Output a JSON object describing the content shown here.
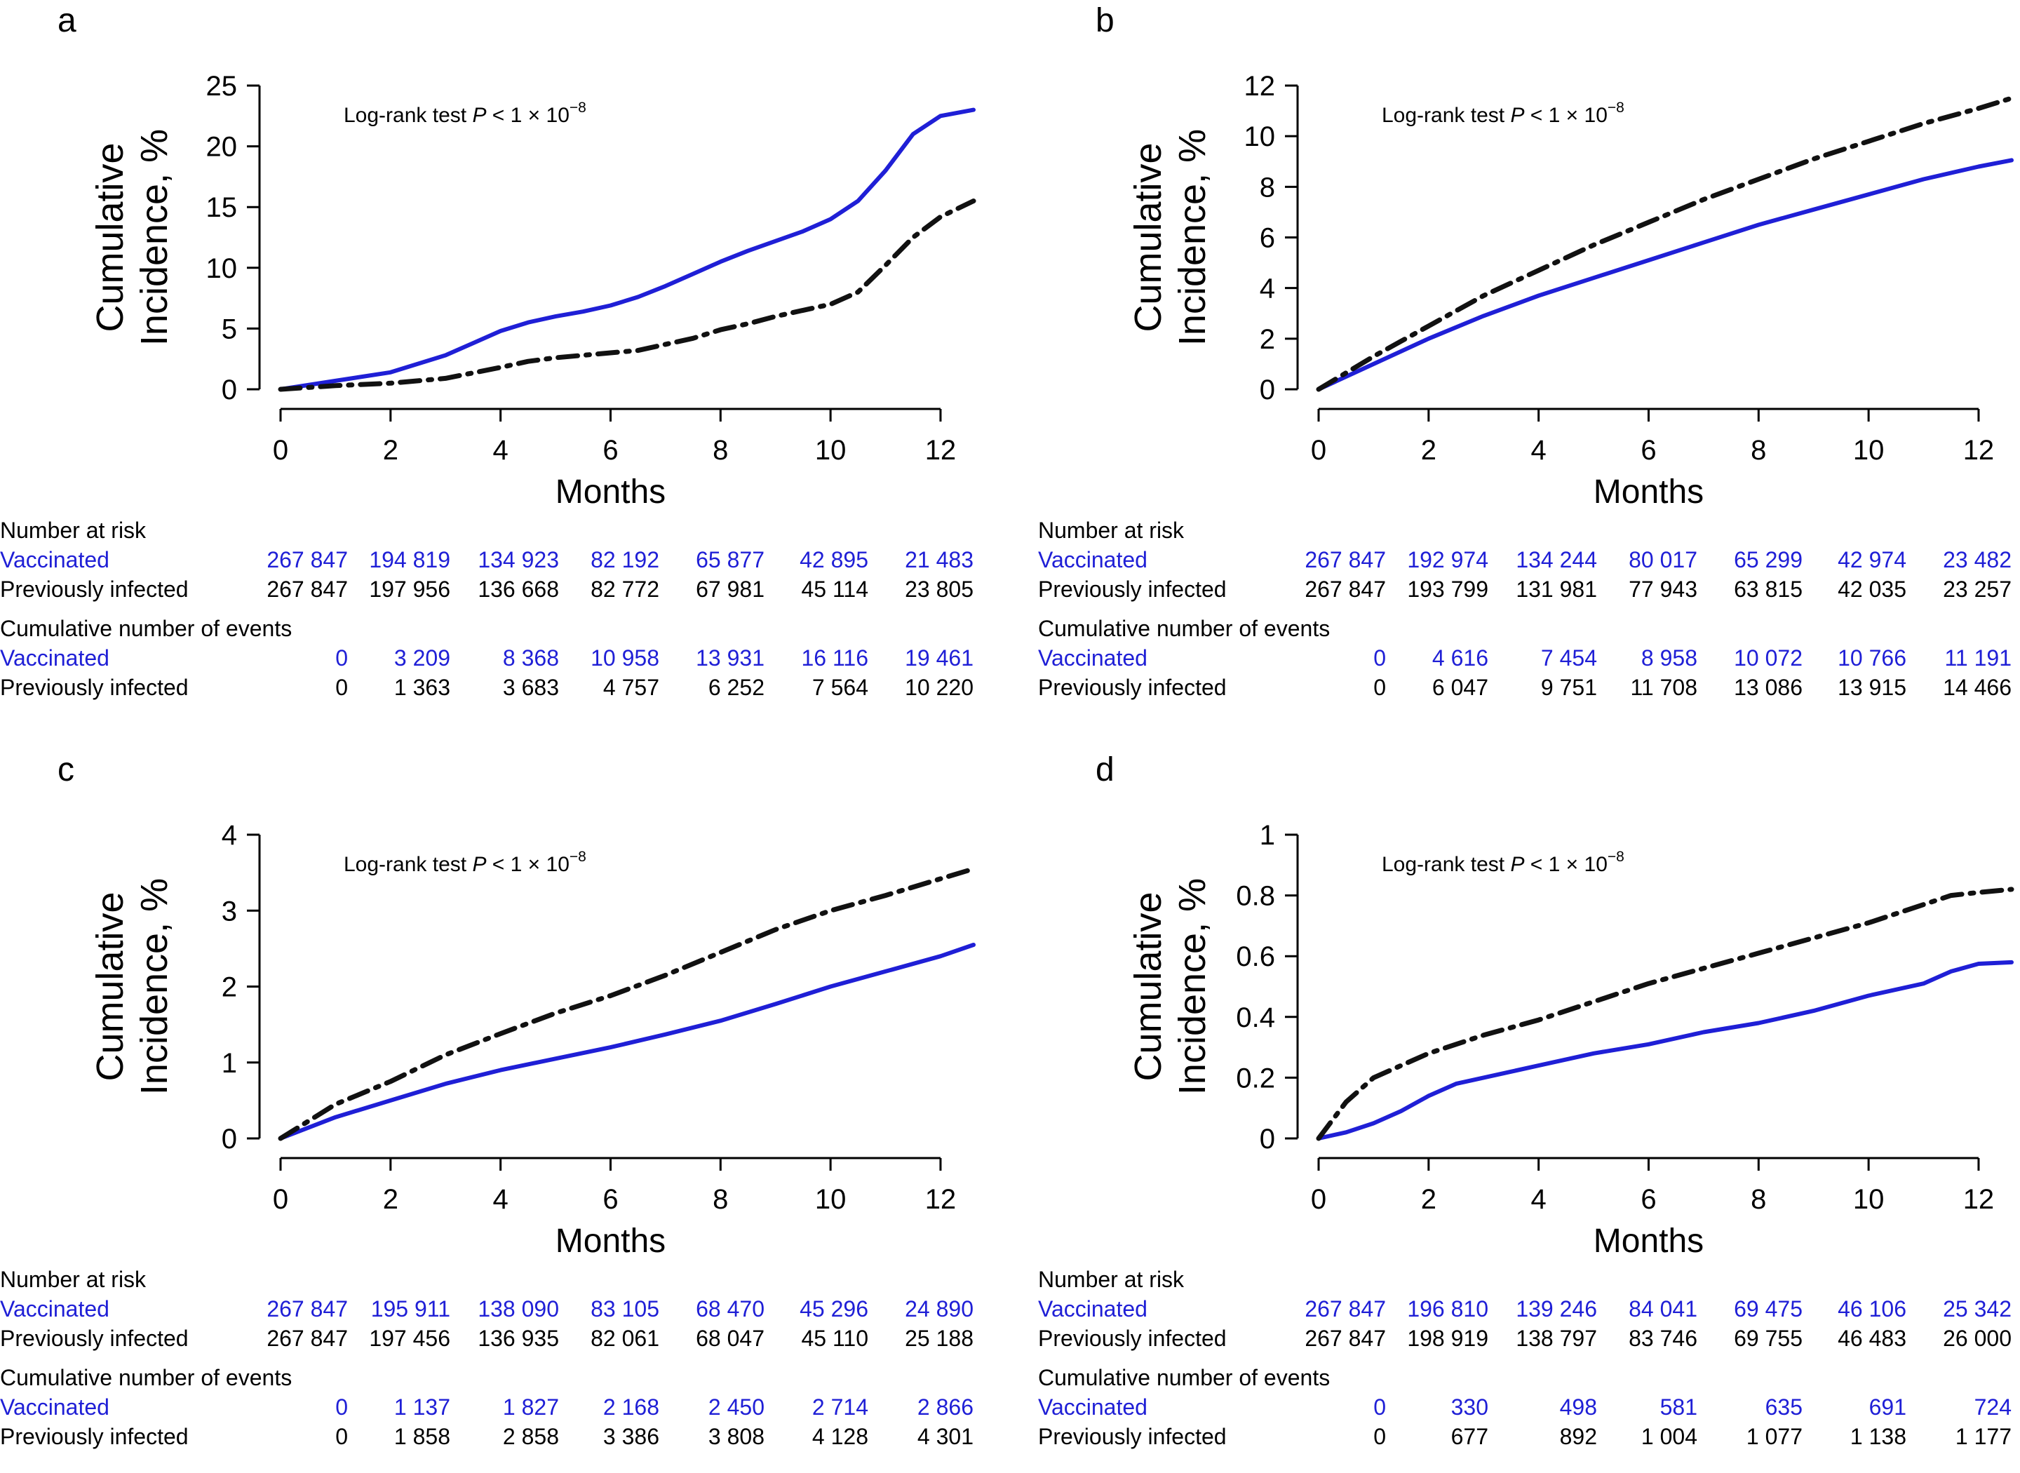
{
  "colors": {
    "vaccinated": "#1f1fd6",
    "previously_infected": "#111111"
  },
  "chart_data": [
    {
      "panel": "a",
      "type": "line",
      "annotation_prefix": "Log-rank test ",
      "annotation_p": "P",
      "annotation_mid": " < 1 × 10",
      "annotation_exp": "−8",
      "ylabel_line1": "Cumulative",
      "ylabel_line2": "Incidence, %",
      "xlabel": "Months",
      "xlim": [
        0,
        12.6
      ],
      "ylim": [
        0,
        25
      ],
      "xticks": [
        0,
        2,
        4,
        6,
        8,
        10,
        12
      ],
      "yticks": [
        0,
        5,
        10,
        15,
        20,
        25
      ],
      "series": [
        {
          "key": "vaccinated",
          "style": "solid",
          "x": [
            0,
            1,
            2,
            3,
            3.5,
            4,
            4.5,
            5,
            5.5,
            6,
            6.5,
            7,
            7.5,
            8,
            8.5,
            9,
            9.5,
            10,
            10.5,
            11,
            11.5,
            12,
            12.6
          ],
          "y": [
            0,
            0.7,
            1.4,
            2.8,
            3.8,
            4.8,
            5.5,
            6.0,
            6.4,
            6.9,
            7.6,
            8.5,
            9.5,
            10.5,
            11.4,
            12.2,
            13.0,
            14.0,
            15.5,
            18.0,
            21.0,
            22.5,
            23.0
          ]
        },
        {
          "key": "previously_infected",
          "style": "dashdot",
          "x": [
            0,
            1,
            2,
            3,
            4,
            4.5,
            5,
            5.5,
            6,
            6.5,
            7,
            7.5,
            8,
            8.5,
            9,
            9.5,
            10,
            10.5,
            11,
            11.5,
            12,
            12.6
          ],
          "y": [
            0,
            0.3,
            0.5,
            0.9,
            1.8,
            2.3,
            2.6,
            2.8,
            3.0,
            3.2,
            3.7,
            4.2,
            4.9,
            5.4,
            6.0,
            6.5,
            7.0,
            8.0,
            10.2,
            12.5,
            14.2,
            15.5
          ]
        }
      ],
      "risk_table": {
        "number_at_risk_title": "Number at risk",
        "events_title": "Cumulative number of events",
        "vaccinated_label": "Vaccinated",
        "infected_label": "Previously infected",
        "risk_vaccinated": [
          "267 847",
          "194 819",
          "134 923",
          "82 192",
          "65 877",
          "42 895",
          "21 483"
        ],
        "risk_infected": [
          "267 847",
          "197 956",
          "136 668",
          "82 772",
          "67 981",
          "45 114",
          "23 805"
        ],
        "events_vaccinated": [
          "0",
          "3 209",
          "8 368",
          "10 958",
          "13 931",
          "16 116",
          "19 461"
        ],
        "events_infected": [
          "0",
          "1 363",
          "3 683",
          "4 757",
          "6 252",
          "7 564",
          "10 220"
        ]
      }
    },
    {
      "panel": "b",
      "type": "line",
      "annotation_prefix": "Log-rank test ",
      "annotation_p": "P",
      "annotation_mid": " < 1 × 10",
      "annotation_exp": "−8",
      "ylabel_line1": "Cumulative",
      "ylabel_line2": "Incidence, %",
      "xlabel": "Months",
      "xlim": [
        0,
        12.6
      ],
      "ylim": [
        0,
        12
      ],
      "xticks": [
        0,
        2,
        4,
        6,
        8,
        10,
        12
      ],
      "yticks": [
        0,
        2,
        4,
        6,
        8,
        10,
        12
      ],
      "series": [
        {
          "key": "vaccinated",
          "style": "solid",
          "x": [
            0,
            1,
            2,
            3,
            4,
            5,
            6,
            7,
            8,
            9,
            10,
            11,
            12,
            12.6
          ],
          "y": [
            0,
            1.0,
            2.0,
            2.9,
            3.7,
            4.4,
            5.1,
            5.8,
            6.5,
            7.1,
            7.7,
            8.3,
            8.8,
            9.05
          ]
        },
        {
          "key": "previously_infected",
          "style": "dashdot",
          "x": [
            0,
            1,
            2,
            3,
            4,
            5,
            6,
            7,
            8,
            9,
            10,
            11,
            12,
            12.6
          ],
          "y": [
            0,
            1.3,
            2.5,
            3.7,
            4.7,
            5.7,
            6.6,
            7.5,
            8.3,
            9.1,
            9.8,
            10.5,
            11.1,
            11.5
          ]
        }
      ],
      "risk_table": {
        "number_at_risk_title": "Number at risk",
        "events_title": "Cumulative number of events",
        "vaccinated_label": "Vaccinated",
        "infected_label": "Previously infected",
        "risk_vaccinated": [
          "267 847",
          "192 974",
          "134 244",
          "80 017",
          "65 299",
          "42 974",
          "23 482"
        ],
        "risk_infected": [
          "267 847",
          "193 799",
          "131 981",
          "77 943",
          "63 815",
          "42 035",
          "23 257"
        ],
        "events_vaccinated": [
          "0",
          "4 616",
          "7 454",
          "8 958",
          "10 072",
          "10 766",
          "11 191"
        ],
        "events_infected": [
          "0",
          "6 047",
          "9 751",
          "11 708",
          "13 086",
          "13 915",
          "14 466"
        ]
      }
    },
    {
      "panel": "c",
      "type": "line",
      "annotation_prefix": "Log-rank test ",
      "annotation_p": "P",
      "annotation_mid": " < 1 × 10",
      "annotation_exp": "−8",
      "ylabel_line1": "Cumulative",
      "ylabel_line2": "Incidence, %",
      "xlabel": "Months",
      "xlim": [
        0,
        12.6
      ],
      "ylim": [
        0,
        4
      ],
      "xticks": [
        0,
        2,
        4,
        6,
        8,
        10,
        12
      ],
      "yticks": [
        0,
        1,
        2,
        3,
        4
      ],
      "series": [
        {
          "key": "vaccinated",
          "style": "solid",
          "x": [
            0,
            1,
            2,
            3,
            4,
            5,
            6,
            7,
            8,
            9,
            10,
            11,
            12,
            12.6
          ],
          "y": [
            0,
            0.28,
            0.5,
            0.72,
            0.9,
            1.05,
            1.2,
            1.37,
            1.55,
            1.77,
            2.0,
            2.2,
            2.4,
            2.55
          ]
        },
        {
          "key": "previously_infected",
          "style": "dashdot",
          "x": [
            0,
            1,
            2,
            3,
            4,
            5,
            6,
            7,
            8,
            9,
            10,
            11,
            12,
            12.6
          ],
          "y": [
            0,
            0.45,
            0.75,
            1.1,
            1.38,
            1.65,
            1.88,
            2.15,
            2.45,
            2.75,
            3.0,
            3.2,
            3.42,
            3.55
          ]
        }
      ],
      "risk_table": {
        "number_at_risk_title": "Number at risk",
        "events_title": "Cumulative number of events",
        "vaccinated_label": "Vaccinated",
        "infected_label": "Previously infected",
        "risk_vaccinated": [
          "267 847",
          "195 911",
          "138 090",
          "83 105",
          "68 470",
          "45 296",
          "24 890"
        ],
        "risk_infected": [
          "267 847",
          "197 456",
          "136 935",
          "82 061",
          "68 047",
          "45 110",
          "25 188"
        ],
        "events_vaccinated": [
          "0",
          "1 137",
          "1 827",
          "2 168",
          "2 450",
          "2 714",
          "2 866"
        ],
        "events_infected": [
          "0",
          "1 858",
          "2 858",
          "3 386",
          "3 808",
          "4 128",
          "4 301"
        ]
      }
    },
    {
      "panel": "d",
      "type": "line",
      "annotation_prefix": "Log-rank test ",
      "annotation_p": "P",
      "annotation_mid": " < 1 × 10",
      "annotation_exp": "−8",
      "ylabel_line1": "Cumulative",
      "ylabel_line2": "Incidence, %",
      "xlabel": "Months",
      "xlim": [
        0,
        12.6
      ],
      "ylim": [
        0,
        1
      ],
      "xticks": [
        0,
        2,
        4,
        6,
        8,
        10,
        12
      ],
      "yticks": [
        0,
        0.2,
        0.4,
        0.6,
        0.8,
        1
      ],
      "series": [
        {
          "key": "vaccinated",
          "style": "solid",
          "x": [
            0,
            0.5,
            1,
            1.5,
            2,
            2.5,
            3,
            4,
            5,
            6,
            7,
            8,
            9,
            10,
            11,
            11.5,
            12,
            12.6
          ],
          "y": [
            0,
            0.02,
            0.05,
            0.09,
            0.14,
            0.18,
            0.2,
            0.24,
            0.28,
            0.31,
            0.35,
            0.38,
            0.42,
            0.47,
            0.51,
            0.55,
            0.575,
            0.58
          ]
        },
        {
          "key": "previously_infected",
          "style": "dashdot",
          "x": [
            0,
            0.5,
            1,
            1.5,
            2,
            3,
            4,
            5,
            6,
            7,
            8,
            9,
            10,
            11,
            11.5,
            12,
            12.6
          ],
          "y": [
            0,
            0.12,
            0.2,
            0.24,
            0.28,
            0.34,
            0.39,
            0.45,
            0.51,
            0.56,
            0.61,
            0.66,
            0.71,
            0.77,
            0.8,
            0.81,
            0.82
          ]
        }
      ],
      "risk_table": {
        "number_at_risk_title": "Number at risk",
        "events_title": "Cumulative number of events",
        "vaccinated_label": "Vaccinated",
        "infected_label": "Previously infected",
        "risk_vaccinated": [
          "267 847",
          "196 810",
          "139 246",
          "84 041",
          "69 475",
          "46 106",
          "25 342"
        ],
        "risk_infected": [
          "267 847",
          "198 919",
          "138 797",
          "83 746",
          "69 755",
          "46 483",
          "26 000"
        ],
        "events_vaccinated": [
          "0",
          "330",
          "498",
          "581",
          "635",
          "691",
          "724"
        ],
        "events_infected": [
          "0",
          "677",
          "892",
          "1 004",
          "1 077",
          "1 138",
          "1 177"
        ]
      }
    }
  ]
}
